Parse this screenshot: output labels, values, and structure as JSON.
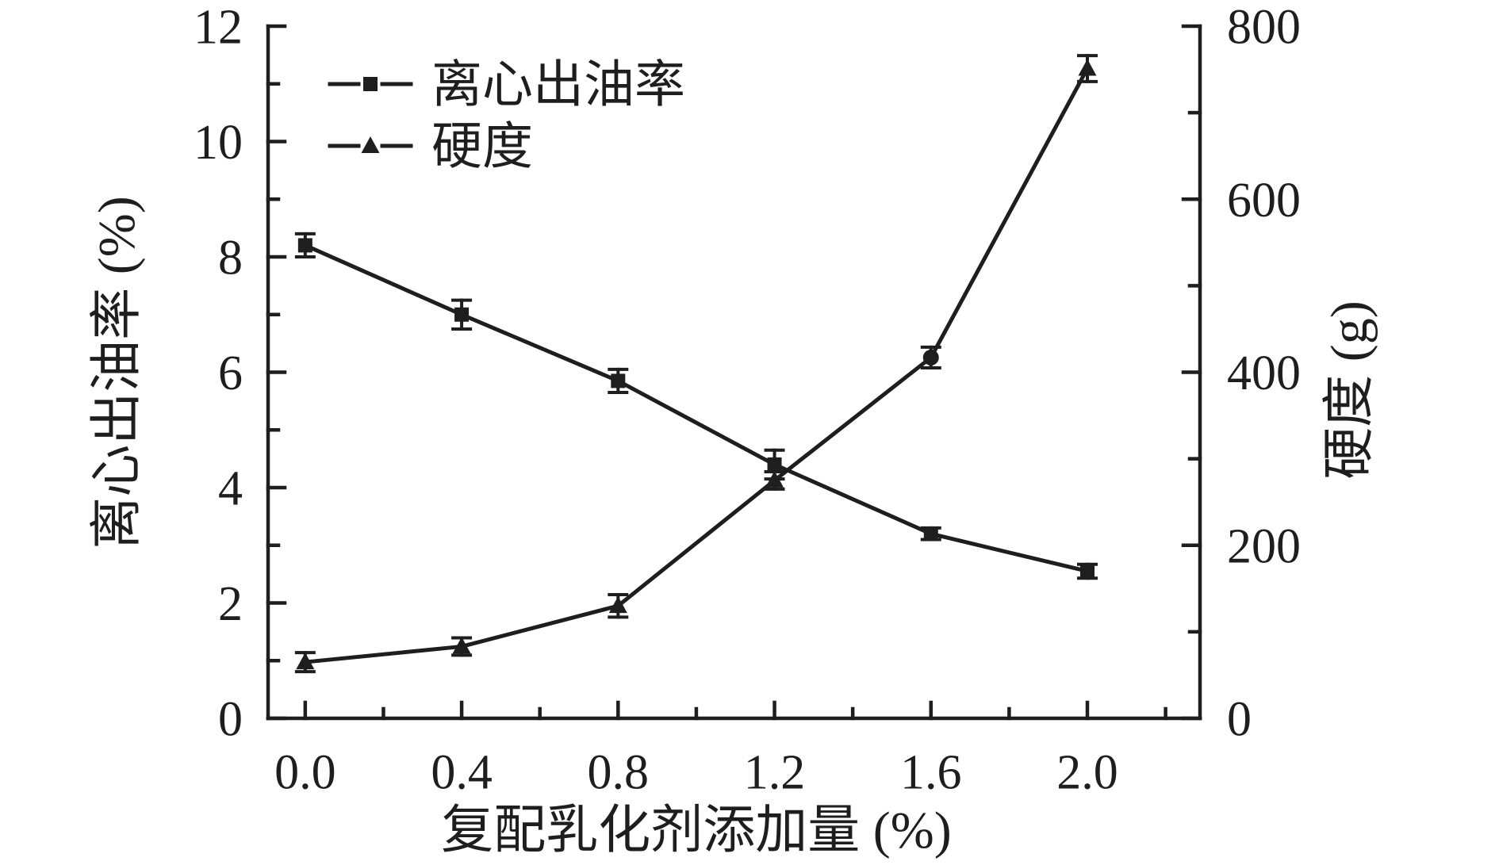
{
  "figure": {
    "background": "#ffffff",
    "ink_color": "#1e1e1e"
  },
  "chart_data": {
    "type": "line",
    "x": [
      0.0,
      0.4,
      0.8,
      1.2,
      1.6,
      2.0
    ],
    "series": [
      {
        "name": "离心出油率",
        "axis": "left",
        "marker": "square",
        "values": [
          8.2,
          7.0,
          5.85,
          4.4,
          3.2,
          2.55
        ],
        "errors": [
          0.2,
          0.25,
          0.2,
          0.25,
          0.1,
          0.12
        ]
      },
      {
        "name": "硬度",
        "axis": "right",
        "marker": "triangle",
        "marker_exceptions": {
          "4": "circle"
        },
        "values": [
          65,
          83,
          130,
          275,
          417,
          751
        ],
        "errors": [
          11,
          10,
          13,
          10,
          12,
          15
        ]
      }
    ],
    "xlabel": "复配乳化剂添加量 (%)",
    "ylabel_left": "离心出油率 (%)",
    "ylabel_right": "硬度 (g)",
    "xlim": [
      -0.095,
      2.288
    ],
    "ylim_left": [
      0,
      12
    ],
    "ylim_right": [
      0,
      800
    ],
    "xticks": {
      "values": [
        0.0,
        0.4,
        0.8,
        1.2,
        1.6,
        2.0
      ],
      "labels": [
        "0.0",
        "0.4",
        "0.8",
        "1.2",
        "1.6",
        "2.0"
      ]
    },
    "yticks_left": {
      "values": [
        0,
        2,
        4,
        6,
        8,
        10,
        12
      ],
      "labels": [
        "0",
        "2",
        "4",
        "6",
        "8",
        "10",
        "12"
      ]
    },
    "yticks_right": {
      "values": [
        0,
        200,
        400,
        600,
        800
      ],
      "labels": [
        "0",
        "200",
        "400",
        "600",
        "800"
      ]
    },
    "minor_xticks": [
      0.2,
      0.6,
      1.0,
      1.4,
      1.8,
      2.2
    ],
    "minor_yticks_left": [
      1,
      3,
      5,
      7,
      9,
      11
    ],
    "minor_yticks_right": [
      100,
      300,
      500,
      700
    ],
    "grid": false,
    "legend": {
      "position": "upper-left",
      "entries": [
        {
          "label": "离心出油率",
          "marker": "square"
        },
        {
          "label": "硬度",
          "marker": "triangle"
        }
      ]
    }
  }
}
